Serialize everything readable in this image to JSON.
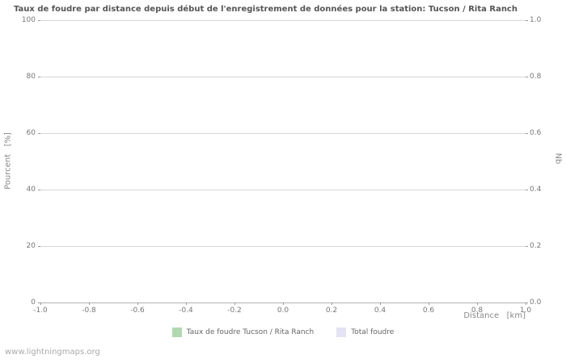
{
  "footer": {
    "text": "www.lightningmaps.org"
  },
  "colors": {
    "background": "#ffffff",
    "title_text": "#555555",
    "axis_text": "#888888",
    "tick_text": "#777777",
    "grid_line": "#d6d6d6",
    "axis_line": "#b0b0b0",
    "tick_mark": "#999999",
    "legend_taux": "#b2d8b2",
    "legend_total": "#e3e3f3",
    "watermark_text": "#aaaaaa"
  },
  "chart_data": {
    "type": "line",
    "title": "Taux de foudre par distance depuis début de l'enregistrement de données pour la station: Tucson / Rita Ranch",
    "xlabel": "Distance   [km]",
    "ylabel_left": "Pourcent   [%]",
    "ylabel_right": "Nb",
    "xlim": [
      -1.0,
      1.0
    ],
    "ylim_left": [
      0,
      100
    ],
    "ylim_right": [
      0.0,
      1.0
    ],
    "x_ticks": [
      "-1.0",
      "-0.8",
      "-0.6",
      "-0.4",
      "-0.2",
      "0.0",
      "0.2",
      "0.4",
      "0.6",
      "0.8",
      "1.0"
    ],
    "y_ticks_left": [
      "0",
      "20",
      "40",
      "60",
      "80",
      "100"
    ],
    "y_ticks_right": [
      "0.0",
      "0.2",
      "0.4",
      "0.6",
      "0.8",
      "1.0"
    ],
    "grid": "horizontal",
    "legend_position": "bottom",
    "series": [
      {
        "name": "Taux de foudre Tucson / Rita Ranch",
        "color": "#b2d8b2",
        "x": [],
        "values": []
      },
      {
        "name": "Total foudre",
        "color": "#e3e3f3",
        "x": [],
        "values": []
      }
    ]
  }
}
